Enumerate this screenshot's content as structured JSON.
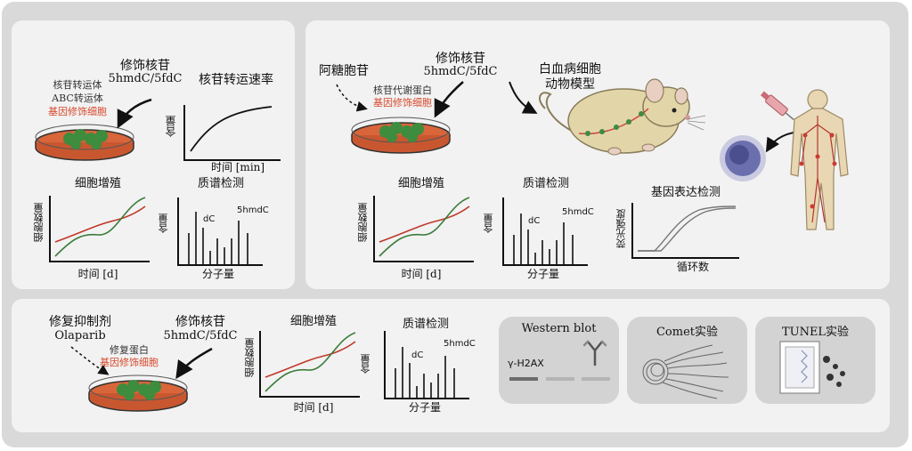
{
  "left_top": {
    "modified_nucleoside": "修饰核苷",
    "nucleosides": "5hmdC/5fdC",
    "transporters": "核苷转运体",
    "abc": "ABC转运体",
    "engineered_cell": "基因修饰细胞",
    "rate_title": "核苷转运速率",
    "rate_ylabel": "含量",
    "rate_xlabel": "时间 [min]",
    "prolif_title": "细胞增殖",
    "prolif_ylabel": "细胞数量",
    "prolif_xlabel": "时间 [d]",
    "ms_title": "质谱检测",
    "ms_ylabel": "含量",
    "ms_xlabel": "分子量",
    "ms_peak1": "dC",
    "ms_peak2": "5hmdC"
  },
  "right_top": {
    "drug": "阿糖胞苷",
    "modified_nucleoside": "修饰核苷",
    "nucleosides": "5hmdC/5fdC",
    "metabolic_protein": "核苷代谢蛋白",
    "engineered_cell": "基因修饰细胞",
    "model_line1": "白血病细胞",
    "model_line2": "动物模型",
    "prolif_title": "细胞增殖",
    "prolif_ylabel": "细胞数量",
    "prolif_xlabel": "时间 [d]",
    "ms_title": "质谱检测",
    "ms_ylabel": "含量",
    "ms_xlabel": "分子量",
    "ms_peak1": "dC",
    "ms_peak2": "5hmdC",
    "qpcr_title": "基因表达检测",
    "qpcr_ylabel": "荧光强度",
    "qpcr_xlabel": "循环数"
  },
  "bottom": {
    "inhibitor": "修复抑制剂",
    "olaparib": "Olaparib",
    "modified_nucleoside": "修饰核苷",
    "nucleosides": "5hmdC/5fdC",
    "repair_protein": "修复蛋白",
    "engineered_cell": "基因修饰细胞",
    "prolif_title": "细胞增殖",
    "prolif_ylabel": "细胞数量",
    "prolif_xlabel": "时间 [d]",
    "ms_title": "质谱检测",
    "ms_ylabel": "含量",
    "ms_xlabel": "分子量",
    "ms_peak1": "dC",
    "ms_peak2": "5hmdC",
    "western_title": "Western blot",
    "western_label": "γ-H2AX",
    "comet_title": "Comet实验",
    "tunel_title": "TUNEL实验"
  },
  "colors": {
    "dish_medium": "#d9653a",
    "cells": "#3e8c3e",
    "curve_red": "#c0392b",
    "curve_green": "#3b7d3b",
    "mouse_body": "#e2d6a9",
    "human_body": "#e8d7b2",
    "leukemia_cell": "#6b6fae",
    "syringe": "#e7a6ad"
  },
  "icons": [
    "petri-dish-icon",
    "mouse-icon",
    "human-body-icon",
    "syringe-icon",
    "leukemia-cell-icon",
    "antibody-icon",
    "comet-icon",
    "tunel-icon"
  ]
}
